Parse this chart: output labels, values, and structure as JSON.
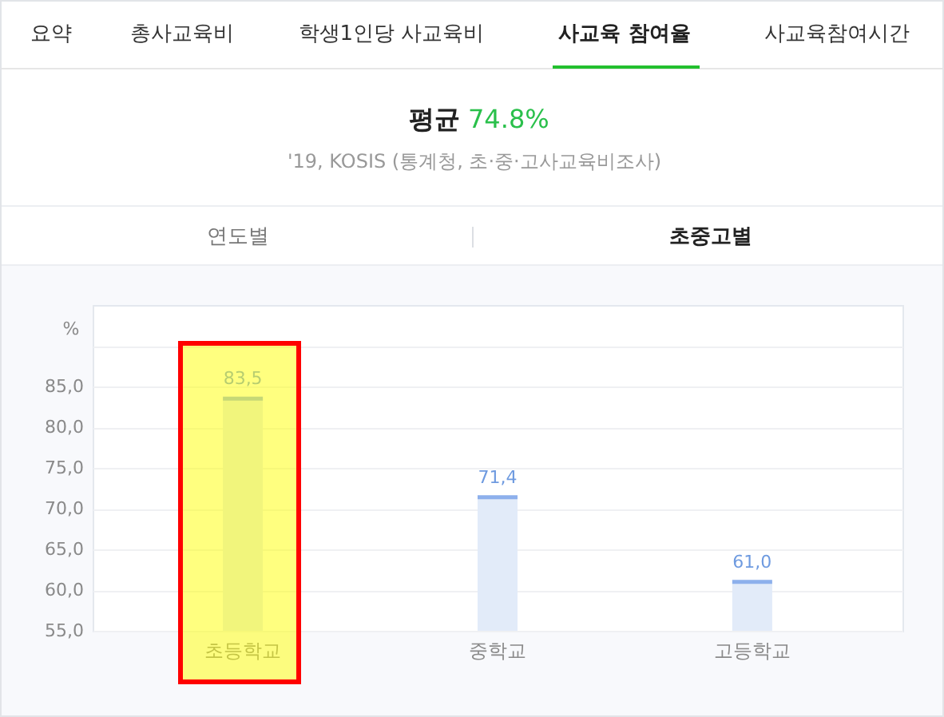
{
  "chart_data": {
    "type": "bar",
    "title": "평균 74.8%",
    "subtitle": "'19, KOSIS (통계청, 초·중·고사교육비조사)",
    "ylabel": "%",
    "categories": [
      "초등학교",
      "중학교",
      "고등학교"
    ],
    "values": [
      83.5,
      71.4,
      61.0
    ],
    "value_labels": [
      "83,5",
      "71,4",
      "61,0"
    ],
    "color": "#e2ebf9",
    "ylim": [
      55,
      95
    ],
    "yticks": [
      {
        "value": 55,
        "label": "55,0"
      },
      {
        "value": 60,
        "label": "60,0"
      },
      {
        "value": 65,
        "label": "65,0"
      },
      {
        "value": 70,
        "label": "70,0"
      },
      {
        "value": 75,
        "label": "75,0"
      },
      {
        "value": 80,
        "label": "80,0"
      },
      {
        "value": 85,
        "label": "85,0"
      },
      {
        "value": 90,
        "label": null
      }
    ],
    "grid": "y",
    "annotations": [
      "요약",
      "총사교육비",
      "학생1인당 사교육비",
      "사교육 참여율",
      "사교육참여시간",
      "연도별",
      "초중고별"
    ]
  }
}
